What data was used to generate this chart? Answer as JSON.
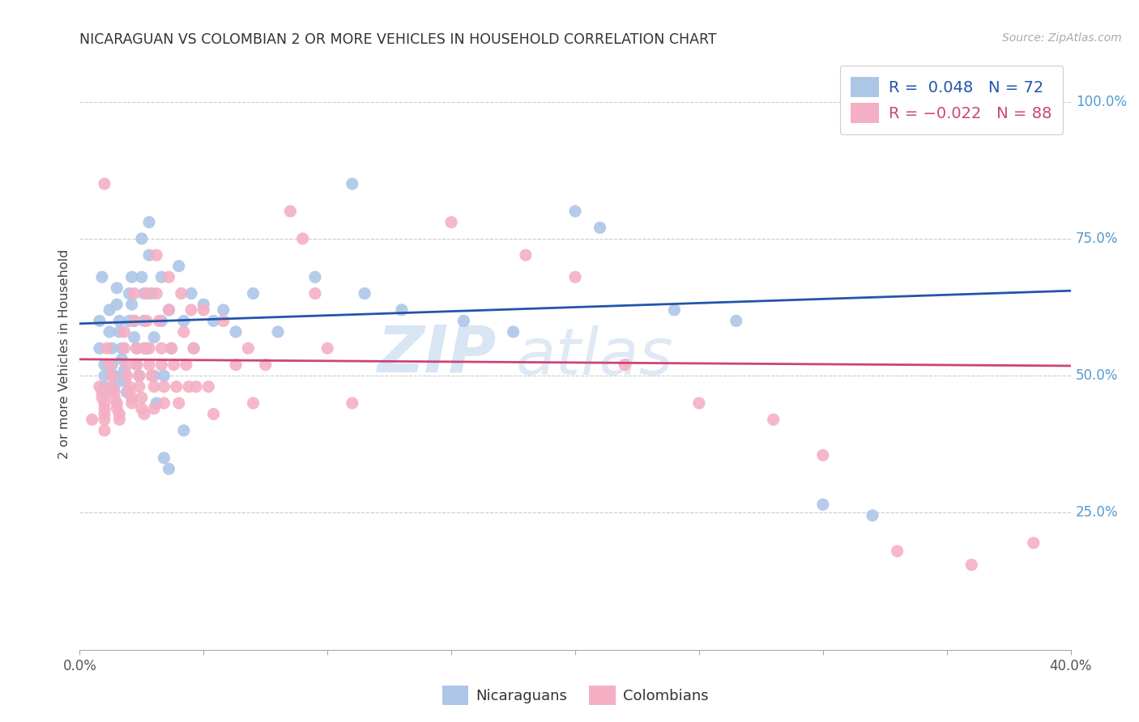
{
  "title": "NICARAGUAN VS COLOMBIAN 2 OR MORE VEHICLES IN HOUSEHOLD CORRELATION CHART",
  "source": "Source: ZipAtlas.com",
  "ylabel": "2 or more Vehicles in Household",
  "yticks_right": [
    "100.0%",
    "75.0%",
    "50.0%",
    "25.0%"
  ],
  "ytick_values": [
    1.0,
    0.75,
    0.5,
    0.25
  ],
  "legend_blue_r": "R =  0.048",
  "legend_blue_n": "N = 72",
  "legend_pink_r": "R = -0.022",
  "legend_pink_n": "N = 88",
  "blue_color": "#adc6e8",
  "pink_color": "#f5afc4",
  "blue_line_color": "#2255aa",
  "pink_line_color": "#cc4477",
  "watermark_zip": "ZIP",
  "watermark_atlas": "atlas",
  "xmin": 0.0,
  "xmax": 0.4,
  "ymin": 0.0,
  "ymax": 1.08,
  "background_color": "#ffffff",
  "grid_color": "#cccccc",
  "blue_scatter": [
    [
      0.008,
      0.6
    ],
    [
      0.008,
      0.55
    ],
    [
      0.009,
      0.68
    ],
    [
      0.01,
      0.52
    ],
    [
      0.01,
      0.5
    ],
    [
      0.01,
      0.48
    ],
    [
      0.01,
      0.47
    ],
    [
      0.012,
      0.62
    ],
    [
      0.012,
      0.58
    ],
    [
      0.013,
      0.55
    ],
    [
      0.013,
      0.52
    ],
    [
      0.014,
      0.5
    ],
    [
      0.014,
      0.48
    ],
    [
      0.015,
      0.66
    ],
    [
      0.015,
      0.63
    ],
    [
      0.016,
      0.6
    ],
    [
      0.016,
      0.58
    ],
    [
      0.017,
      0.55
    ],
    [
      0.017,
      0.53
    ],
    [
      0.018,
      0.51
    ],
    [
      0.018,
      0.49
    ],
    [
      0.019,
      0.47
    ],
    [
      0.02,
      0.65
    ],
    [
      0.02,
      0.6
    ],
    [
      0.021,
      0.68
    ],
    [
      0.021,
      0.63
    ],
    [
      0.022,
      0.6
    ],
    [
      0.022,
      0.57
    ],
    [
      0.023,
      0.55
    ],
    [
      0.023,
      0.52
    ],
    [
      0.024,
      0.5
    ],
    [
      0.025,
      0.75
    ],
    [
      0.025,
      0.68
    ],
    [
      0.026,
      0.65
    ],
    [
      0.026,
      0.6
    ],
    [
      0.027,
      0.55
    ],
    [
      0.028,
      0.78
    ],
    [
      0.028,
      0.72
    ],
    [
      0.029,
      0.65
    ],
    [
      0.03,
      0.57
    ],
    [
      0.03,
      0.5
    ],
    [
      0.031,
      0.45
    ],
    [
      0.033,
      0.68
    ],
    [
      0.033,
      0.6
    ],
    [
      0.034,
      0.5
    ],
    [
      0.036,
      0.62
    ],
    [
      0.037,
      0.55
    ],
    [
      0.04,
      0.7
    ],
    [
      0.042,
      0.6
    ],
    [
      0.042,
      0.4
    ],
    [
      0.045,
      0.65
    ],
    [
      0.046,
      0.55
    ],
    [
      0.05,
      0.63
    ],
    [
      0.054,
      0.6
    ],
    [
      0.058,
      0.62
    ],
    [
      0.063,
      0.58
    ],
    [
      0.07,
      0.65
    ],
    [
      0.08,
      0.58
    ],
    [
      0.095,
      0.68
    ],
    [
      0.11,
      0.85
    ],
    [
      0.115,
      0.65
    ],
    [
      0.13,
      0.62
    ],
    [
      0.155,
      0.6
    ],
    [
      0.175,
      0.58
    ],
    [
      0.2,
      0.8
    ],
    [
      0.21,
      0.77
    ],
    [
      0.24,
      0.62
    ],
    [
      0.265,
      0.6
    ],
    [
      0.3,
      0.265
    ],
    [
      0.32,
      0.245
    ],
    [
      0.034,
      0.35
    ],
    [
      0.036,
      0.33
    ]
  ],
  "pink_scatter": [
    [
      0.005,
      0.42
    ],
    [
      0.008,
      0.48
    ],
    [
      0.009,
      0.47
    ],
    [
      0.009,
      0.46
    ],
    [
      0.01,
      0.85
    ],
    [
      0.01,
      0.45
    ],
    [
      0.01,
      0.44
    ],
    [
      0.01,
      0.43
    ],
    [
      0.01,
      0.42
    ],
    [
      0.01,
      0.4
    ],
    [
      0.011,
      0.55
    ],
    [
      0.012,
      0.52
    ],
    [
      0.013,
      0.5
    ],
    [
      0.013,
      0.48
    ],
    [
      0.014,
      0.47
    ],
    [
      0.014,
      0.46
    ],
    [
      0.015,
      0.45
    ],
    [
      0.015,
      0.44
    ],
    [
      0.016,
      0.43
    ],
    [
      0.016,
      0.42
    ],
    [
      0.018,
      0.58
    ],
    [
      0.018,
      0.55
    ],
    [
      0.019,
      0.52
    ],
    [
      0.019,
      0.5
    ],
    [
      0.02,
      0.48
    ],
    [
      0.02,
      0.47
    ],
    [
      0.021,
      0.46
    ],
    [
      0.021,
      0.45
    ],
    [
      0.022,
      0.65
    ],
    [
      0.022,
      0.6
    ],
    [
      0.023,
      0.55
    ],
    [
      0.023,
      0.52
    ],
    [
      0.024,
      0.5
    ],
    [
      0.024,
      0.48
    ],
    [
      0.025,
      0.46
    ],
    [
      0.025,
      0.44
    ],
    [
      0.026,
      0.43
    ],
    [
      0.026,
      0.55
    ],
    [
      0.027,
      0.65
    ],
    [
      0.027,
      0.6
    ],
    [
      0.028,
      0.55
    ],
    [
      0.028,
      0.52
    ],
    [
      0.029,
      0.5
    ],
    [
      0.03,
      0.48
    ],
    [
      0.03,
      0.44
    ],
    [
      0.031,
      0.72
    ],
    [
      0.031,
      0.65
    ],
    [
      0.032,
      0.6
    ],
    [
      0.033,
      0.55
    ],
    [
      0.033,
      0.52
    ],
    [
      0.034,
      0.48
    ],
    [
      0.034,
      0.45
    ],
    [
      0.036,
      0.68
    ],
    [
      0.036,
      0.62
    ],
    [
      0.037,
      0.55
    ],
    [
      0.038,
      0.52
    ],
    [
      0.039,
      0.48
    ],
    [
      0.04,
      0.45
    ],
    [
      0.041,
      0.65
    ],
    [
      0.042,
      0.58
    ],
    [
      0.043,
      0.52
    ],
    [
      0.044,
      0.48
    ],
    [
      0.045,
      0.62
    ],
    [
      0.046,
      0.55
    ],
    [
      0.047,
      0.48
    ],
    [
      0.05,
      0.62
    ],
    [
      0.052,
      0.48
    ],
    [
      0.054,
      0.43
    ],
    [
      0.058,
      0.6
    ],
    [
      0.063,
      0.52
    ],
    [
      0.068,
      0.55
    ],
    [
      0.07,
      0.45
    ],
    [
      0.075,
      0.52
    ],
    [
      0.085,
      0.8
    ],
    [
      0.09,
      0.75
    ],
    [
      0.095,
      0.65
    ],
    [
      0.1,
      0.55
    ],
    [
      0.11,
      0.45
    ],
    [
      0.15,
      0.78
    ],
    [
      0.18,
      0.72
    ],
    [
      0.2,
      0.68
    ],
    [
      0.22,
      0.52
    ],
    [
      0.25,
      0.45
    ],
    [
      0.28,
      0.42
    ],
    [
      0.3,
      0.355
    ],
    [
      0.33,
      0.18
    ],
    [
      0.36,
      0.155
    ],
    [
      0.385,
      0.195
    ]
  ],
  "blue_line_x": [
    0.0,
    0.4
  ],
  "blue_line_y": [
    0.595,
    0.655
  ],
  "pink_line_x": [
    0.0,
    0.4
  ],
  "pink_line_y": [
    0.53,
    0.518
  ]
}
